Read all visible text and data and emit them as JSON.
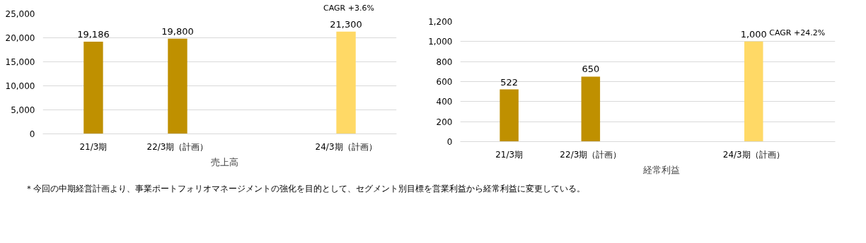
{
  "chart_data": [
    {
      "type": "bar",
      "categories": [
        "21/3期",
        "22/3期（計画）",
        null,
        "24/3期（計画）"
      ],
      "series": [
        {
          "name": "売上高",
          "color": "#bf9000",
          "colors": [
            null,
            null,
            null,
            "#ffd966"
          ],
          "values": [
            19186,
            19800,
            null,
            21300
          ],
          "value_labels": [
            "19,186",
            "19,800",
            null,
            "21,300"
          ]
        }
      ],
      "ylim": [
        0,
        25000
      ],
      "yticks": [
        {
          "value": 0,
          "label": "0"
        },
        {
          "value": 5000,
          "label": "5,000"
        },
        {
          "value": 10000,
          "label": "10,000"
        },
        {
          "value": 15000,
          "label": "15,000"
        },
        {
          "value": 20000,
          "label": "20,000"
        },
        {
          "value": 25000,
          "label": "25,000"
        }
      ],
      "grid": "y",
      "legend": "bottom",
      "annotations": [
        "CAGR +3.6%",
        "＊今回の中期経営計画より、事業ポートフォリオマネージメントの強化を目的として、セグメント別目標を営業利益から経常利益に変更している。"
      ]
    },
    {
      "type": "bar",
      "categories": [
        "21/3期",
        "22/3期（計画）",
        null,
        "24/3期（計画）"
      ],
      "series": [
        {
          "name": "経常利益",
          "color": "#bf9000",
          "colors": [
            null,
            null,
            null,
            "#ffd966"
          ],
          "values": [
            522,
            650,
            null,
            1000
          ],
          "value_labels": [
            "522",
            "650",
            null,
            "1,000"
          ]
        }
      ],
      "ylim": [
        0,
        1200
      ],
      "yticks": [
        {
          "value": 0,
          "label": "0"
        },
        {
          "value": 200,
          "label": "200"
        },
        {
          "value": 400,
          "label": "400"
        },
        {
          "value": 600,
          "label": "600"
        },
        {
          "value": 800,
          "label": "800"
        },
        {
          "value": 1000,
          "label": "1,000"
        },
        {
          "value": 1200,
          "label": "1,200"
        }
      ],
      "grid": "y",
      "legend": "bottom",
      "annotations": [
        {
          "text": "CAGR +24.2%",
          "x": "24/3期（計画）",
          "y": 1000
        }
      ]
    }
  ]
}
